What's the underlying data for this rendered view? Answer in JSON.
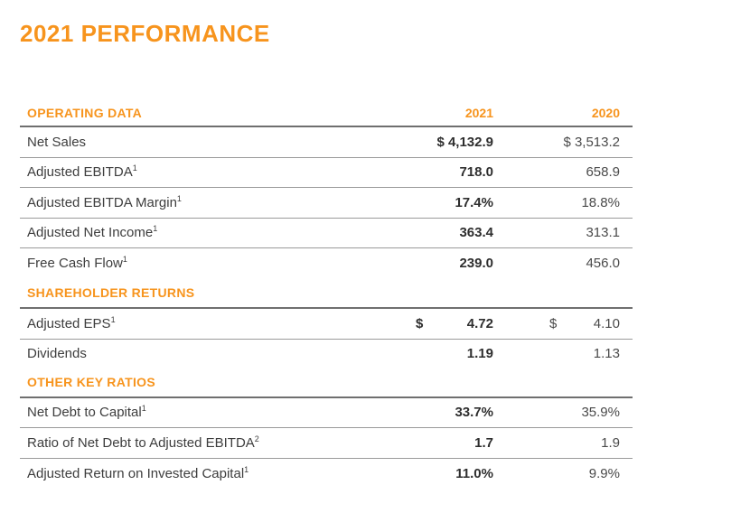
{
  "page": {
    "title": "2021 PERFORMANCE"
  },
  "colors": {
    "accent": "#f7941d",
    "text": "#3d3d3d",
    "rule": "#6f6f6f"
  },
  "table": {
    "col_2021": "2021",
    "col_2020": "2020",
    "sections": [
      {
        "heading": "OPERATING DATA",
        "rows": [
          {
            "label": "Net Sales",
            "sup": "",
            "v2021": "$ 4,132.9",
            "v2020": "$ 3,513.2"
          },
          {
            "label": "Adjusted EBITDA",
            "sup": "1",
            "v2021": "718.0",
            "v2020": "658.9"
          },
          {
            "label": "Adjusted EBITDA Margin",
            "sup": "1",
            "v2021": "17.4%",
            "v2020": "18.8%"
          },
          {
            "label": "Adjusted Net Income",
            "sup": "1",
            "v2021": "363.4",
            "v2020": "313.1"
          },
          {
            "label": "Free Cash Flow",
            "sup": "1",
            "v2021": "239.0",
            "v2020": "456.0"
          }
        ]
      },
      {
        "heading": "SHAREHOLDER RETURNS",
        "rows": [
          {
            "label": "Adjusted EPS",
            "sup": "1",
            "cur2021": "$",
            "v2021": "4.72",
            "cur2020": "$",
            "v2020": "4.10"
          },
          {
            "label": "Dividends",
            "sup": "",
            "v2021": "1.19",
            "v2020": "1.13"
          }
        ]
      },
      {
        "heading": "OTHER KEY RATIOS",
        "rows": [
          {
            "label": "Net Debt to Capital",
            "sup": "1",
            "v2021": "33.7%",
            "v2020": "35.9%"
          },
          {
            "label": "Ratio of Net Debt to Adjusted EBITDA",
            "sup": "2",
            "v2021": "1.7",
            "v2020": "1.9"
          },
          {
            "label": "Adjusted Return on Invested Capital",
            "sup": "1",
            "v2021": "11.0%",
            "v2020": "9.9%"
          }
        ]
      }
    ]
  }
}
